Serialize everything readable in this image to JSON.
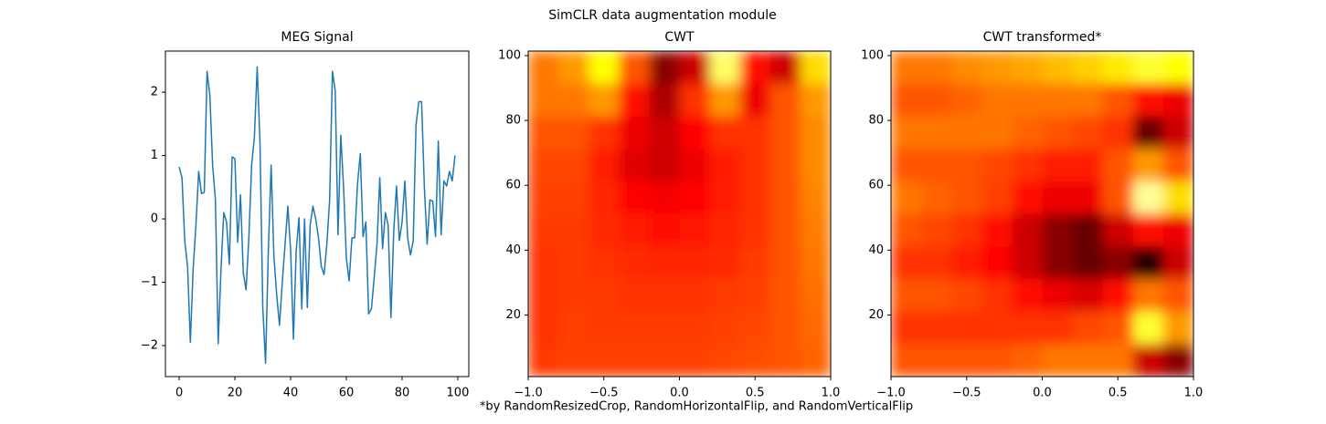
{
  "title": "SimCLR data augmentation module",
  "footnote": "*by RandomResizedCrop, RandomHorizontalFlip, and RandomVerticalFlip",
  "chart_data": [
    {
      "type": "line",
      "title": "MEG Signal",
      "color": "#1f77b4",
      "x": [
        0,
        1,
        2,
        3,
        4,
        5,
        6,
        7,
        8,
        9,
        10,
        11,
        12,
        13,
        14,
        15,
        16,
        17,
        18,
        19,
        20,
        21,
        22,
        23,
        24,
        25,
        26,
        27,
        28,
        29,
        30,
        31,
        32,
        33,
        34,
        35,
        36,
        37,
        38,
        39,
        40,
        41,
        42,
        43,
        44,
        45,
        46,
        47,
        48,
        49,
        50,
        51,
        52,
        53,
        54,
        55,
        56,
        57,
        58,
        59,
        60,
        61,
        62,
        63,
        64,
        65,
        66,
        67,
        68,
        69,
        70,
        71,
        72,
        73,
        74,
        75,
        76,
        77,
        78,
        79,
        80,
        81,
        82,
        83,
        84,
        85,
        86,
        87,
        88,
        89,
        90,
        91,
        92,
        93,
        94,
        95,
        96,
        97,
        98,
        99
      ],
      "values": [
        0.82,
        0.65,
        -0.35,
        -0.75,
        -1.95,
        -0.8,
        -0.1,
        0.75,
        0.4,
        0.42,
        2.33,
        1.95,
        0.85,
        0.3,
        -1.97,
        -0.8,
        0.1,
        -0.05,
        -0.72,
        0.98,
        0.95,
        -0.37,
        0.38,
        -0.85,
        -1.12,
        -0.3,
        0.85,
        1.3,
        2.4,
        1.2,
        -1.4,
        -2.28,
        -0.5,
        0.85,
        -0.6,
        -1.2,
        -1.68,
        -1.0,
        -0.4,
        0.2,
        -0.5,
        -1.9,
        -0.5,
        0.02,
        -1.42,
        0.0,
        -1.4,
        -0.1,
        0.2,
        0.0,
        -0.3,
        -0.75,
        -0.88,
        -0.4,
        0.3,
        2.33,
        2.02,
        -0.25,
        1.32,
        0.5,
        -0.62,
        -0.98,
        -0.3,
        -0.3,
        0.55,
        1.03,
        -0.28,
        -0.05,
        -1.5,
        -1.42,
        -0.92,
        -0.4,
        0.65,
        -0.47,
        0.1,
        -0.1,
        -1.56,
        -0.2,
        0.52,
        -0.34,
        -0.05,
        0.6,
        -0.3,
        -0.57,
        -0.35,
        1.48,
        1.85,
        1.85,
        0.5,
        -0.4,
        0.3,
        0.28,
        -0.28,
        1.23,
        -0.25,
        0.6,
        0.52,
        0.75,
        0.6,
        1.0
      ],
      "xlim": [
        -4.95,
        103.95
      ],
      "ylim": [
        -2.49,
        2.65
      ],
      "xticks": [
        0,
        20,
        40,
        60,
        80,
        100
      ],
      "yticks": [
        {
          "value": -2,
          "label": "−2"
        },
        {
          "value": -1,
          "label": "−1"
        },
        0,
        1,
        2
      ]
    },
    {
      "type": "heatmap",
      "title": "CWT",
      "colormap": "hot",
      "z": [
        [
          0.55,
          0.6,
          0.75,
          0.5,
          0.2,
          0.3,
          0.85,
          0.4,
          0.3,
          0.7
        ],
        [
          0.55,
          0.55,
          0.6,
          0.4,
          0.25,
          0.45,
          0.6,
          0.35,
          0.5,
          0.6
        ],
        [
          0.5,
          0.5,
          0.45,
          0.35,
          0.3,
          0.38,
          0.45,
          0.45,
          0.5,
          0.58
        ],
        [
          0.48,
          0.48,
          0.42,
          0.33,
          0.3,
          0.35,
          0.42,
          0.45,
          0.5,
          0.58
        ],
        [
          0.47,
          0.47,
          0.43,
          0.38,
          0.36,
          0.38,
          0.42,
          0.45,
          0.5,
          0.57
        ],
        [
          0.46,
          0.46,
          0.44,
          0.42,
          0.4,
          0.41,
          0.43,
          0.45,
          0.5,
          0.56
        ],
        [
          0.45,
          0.46,
          0.45,
          0.44,
          0.43,
          0.43,
          0.44,
          0.46,
          0.5,
          0.55
        ],
        [
          0.45,
          0.46,
          0.46,
          0.45,
          0.45,
          0.45,
          0.46,
          0.47,
          0.5,
          0.54
        ],
        [
          0.45,
          0.47,
          0.46,
          0.46,
          0.46,
          0.46,
          0.47,
          0.48,
          0.5,
          0.53
        ],
        [
          0.46,
          0.47,
          0.47,
          0.47,
          0.47,
          0.47,
          0.48,
          0.49,
          0.5,
          0.52
        ]
      ],
      "xlim": [
        -1,
        1
      ],
      "ylim": [
        1,
        101.4
      ],
      "xticks": [
        {
          "value": -1,
          "label": "−1.0"
        },
        {
          "value": -0.5,
          "label": "−0.5"
        },
        {
          "value": 0,
          "label": "0.0"
        },
        0.5,
        {
          "value": 1,
          "label": "1.0"
        }
      ],
      "yticks": [
        20,
        40,
        60,
        80,
        100
      ]
    },
    {
      "type": "heatmap",
      "title": "CWT transformed*",
      "colormap": "hot",
      "z": [
        [
          0.55,
          0.55,
          0.58,
          0.6,
          0.62,
          0.65,
          0.68,
          0.72,
          0.8,
          0.75
        ],
        [
          0.5,
          0.5,
          0.52,
          0.55,
          0.55,
          0.55,
          0.55,
          0.5,
          0.4,
          0.35
        ],
        [
          0.55,
          0.55,
          0.55,
          0.55,
          0.52,
          0.5,
          0.48,
          0.45,
          0.15,
          0.3
        ],
        [
          0.5,
          0.5,
          0.5,
          0.48,
          0.45,
          0.42,
          0.42,
          0.5,
          0.6,
          0.5
        ],
        [
          0.55,
          0.52,
          0.5,
          0.47,
          0.4,
          0.35,
          0.35,
          0.5,
          0.9,
          0.7
        ],
        [
          0.5,
          0.48,
          0.45,
          0.4,
          0.3,
          0.2,
          0.15,
          0.3,
          0.4,
          0.35
        ],
        [
          0.45,
          0.45,
          0.42,
          0.38,
          0.3,
          0.2,
          0.15,
          0.2,
          0.05,
          0.3
        ],
        [
          0.5,
          0.5,
          0.48,
          0.45,
          0.4,
          0.35,
          0.32,
          0.4,
          0.55,
          0.5
        ],
        [
          0.45,
          0.45,
          0.45,
          0.45,
          0.45,
          0.45,
          0.48,
          0.5,
          0.8,
          0.6
        ],
        [
          0.5,
          0.5,
          0.5,
          0.5,
          0.52,
          0.55,
          0.55,
          0.55,
          0.3,
          0.2
        ]
      ],
      "xlim": [
        -1,
        1
      ],
      "ylim": [
        1,
        101.4
      ],
      "xticks": [
        {
          "value": -1,
          "label": "−1.0"
        },
        {
          "value": -0.5,
          "label": "−0.5"
        },
        {
          "value": 0,
          "label": "0.0"
        },
        0.5,
        {
          "value": 1,
          "label": "1.0"
        }
      ],
      "yticks": [
        20,
        40,
        60,
        80,
        100
      ]
    }
  ]
}
